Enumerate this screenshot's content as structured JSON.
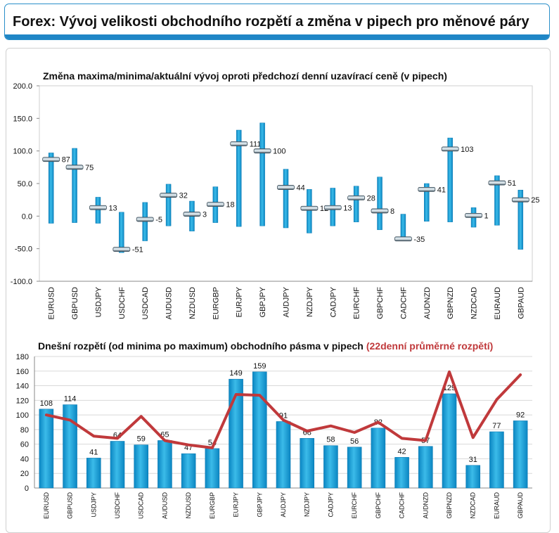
{
  "page": {
    "title": "Forex: Vývoj velikosti obchodního rozpětí a změna v pipech pro měnové páry"
  },
  "colors": {
    "bar": "#1b9fd6",
    "bar_dark": "#0e7bb3",
    "marker": "#6a7f8c",
    "line": "#c0393b",
    "header_band": "#1f86c6"
  },
  "chart_data": [
    {
      "type": "bar",
      "subtype": "range-with-marker",
      "title": "Změna maxima/minima/aktuální vývoj oproti předchozí denní uzavírací ceně (v pipech)",
      "categories": [
        "EURUSD",
        "GBPUSD",
        "USDJPY",
        "USDCHF",
        "USDCAD",
        "AUDUSD",
        "NZDUSD",
        "EURGBP",
        "EURJPY",
        "GBPJPY",
        "AUDJPY",
        "NZDJPY",
        "CADJPY",
        "EURCHF",
        "GBPCHF",
        "CADCHF",
        "AUDNZD",
        "GBPNZD",
        "NZDCAD",
        "EURAUD",
        "GBPAUD"
      ],
      "series": [
        {
          "name": "",
          "role": "high",
          "values": [
            97,
            104,
            29,
            6,
            21,
            49,
            23,
            45,
            132,
            143,
            72,
            41,
            43,
            46,
            60,
            3,
            50,
            120,
            13,
            62,
            40
          ]
        },
        {
          "name": "",
          "role": "low",
          "values": [
            -11,
            -10,
            -11,
            -56,
            -38,
            -15,
            -23,
            -10,
            -16,
            -15,
            -18,
            -26,
            -15,
            -9,
            -21,
            -37,
            -8,
            -9,
            -17,
            -14,
            -51
          ]
        },
        {
          "name": "",
          "role": "current",
          "values": [
            87,
            75,
            13,
            -51,
            -5,
            32,
            3,
            18,
            111,
            100,
            44,
            12,
            13,
            28,
            8,
            -35,
            41,
            103,
            1,
            51,
            25
          ]
        }
      ],
      "labels": [
        "87",
        "75",
        "13",
        "-51",
        "-5",
        "32",
        "3",
        "18",
        "111",
        "100",
        "44",
        "12",
        "13",
        "28",
        "8",
        "-35",
        "41",
        "103",
        "1",
        "51",
        "25"
      ],
      "yticks": [
        "200.0",
        "150.0",
        "100.0",
        "50.0",
        "0.0",
        "-50.0",
        "-100.0"
      ],
      "ylim": [
        -100,
        200
      ],
      "grid": false
    },
    {
      "type": "bar",
      "title": "Dnešní rozpětí (od minima po maximum) obchodního pásma v pipech",
      "title_highlight": "(22denní průměrné rozpětí)",
      "categories": [
        "EURUSD",
        "GBPUSD",
        "USDJPY",
        "USDCHF",
        "USDCAD",
        "AUDUSD",
        "NZDUSD",
        "EURGBP",
        "EURJPY",
        "GBPJPY",
        "AUDJPY",
        "NZDJPY",
        "CADJPY",
        "EURCHF",
        "GBPCHF",
        "CADCHF",
        "AUDNZD",
        "GBPNZD",
        "NZDCAD",
        "EURAUD",
        "GBPAUD"
      ],
      "series": [
        {
          "name": "",
          "type": "bar",
          "values": [
            108,
            114,
            41,
            64,
            59,
            65,
            47,
            54,
            149,
            159,
            91,
            68,
            58,
            56,
            82,
            42,
            57,
            129,
            31,
            77,
            92
          ]
        },
        {
          "name": "",
          "type": "line",
          "values": [
            100,
            93,
            71,
            68,
            98,
            65,
            59,
            55,
            128,
            127,
            93,
            78,
            85,
            76,
            90,
            68,
            65,
            159,
            69,
            121,
            155
          ]
        }
      ],
      "labels": [
        "108",
        "114",
        "41",
        "64",
        "59",
        "65",
        "47",
        "54",
        "149",
        "159",
        "91",
        "68",
        "58",
        "56",
        "82",
        "42",
        "57",
        "129",
        "31",
        "77",
        "92"
      ],
      "yticks": [
        "180",
        "160",
        "140",
        "120",
        "100",
        "80",
        "60",
        "40",
        "20",
        "0"
      ],
      "ylim": [
        0,
        180
      ],
      "grid": true
    }
  ]
}
